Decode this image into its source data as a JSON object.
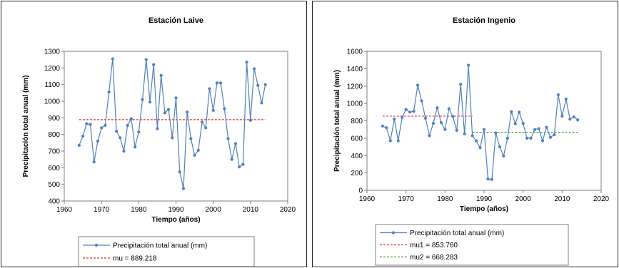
{
  "chart_data": [
    {
      "type": "line",
      "title": "Estación Laive",
      "xlabel": "Tiempo (años)",
      "ylabel": "Precipitación total anual (mm)",
      "xlim": [
        1960,
        2020
      ],
      "ylim": [
        400,
        1300
      ],
      "xticks": [
        1960,
        1970,
        1980,
        1990,
        2000,
        2010,
        2020
      ],
      "yticks": [
        400,
        500,
        600,
        700,
        800,
        900,
        1000,
        1100,
        1200,
        1300
      ],
      "grid": false,
      "legend_position": "below",
      "series": [
        {
          "name": "Precipitación total anual (mm)",
          "color": "#4f81bd",
          "x": [
            1964,
            1965,
            1966,
            1967,
            1968,
            1969,
            1970,
            1971,
            1972,
            1973,
            1974,
            1975,
            1976,
            1977,
            1978,
            1979,
            1980,
            1981,
            1982,
            1983,
            1984,
            1985,
            1986,
            1987,
            1988,
            1989,
            1990,
            1991,
            1992,
            1993,
            1994,
            1995,
            1996,
            1997,
            1998,
            1999,
            2000,
            2001,
            2002,
            2003,
            2004,
            2005,
            2006,
            2007,
            2008,
            2009,
            2010,
            2011,
            2012,
            2013,
            2014
          ],
          "y": [
            735,
            790,
            865,
            860,
            635,
            760,
            840,
            855,
            1055,
            1255,
            820,
            780,
            700,
            855,
            895,
            725,
            815,
            1010,
            1250,
            995,
            1220,
            835,
            1155,
            930,
            950,
            780,
            1020,
            575,
            475,
            935,
            775,
            675,
            705,
            875,
            840,
            1075,
            945,
            1110,
            1110,
            955,
            775,
            650,
            745,
            605,
            620,
            1235,
            885,
            1195,
            1095,
            990,
            1100
          ]
        }
      ],
      "reference_lines": [
        {
          "name": "mu = 889.218",
          "value": 889.218,
          "x_range": [
            1964,
            2014
          ],
          "color": "#e03030"
        }
      ]
    },
    {
      "type": "line",
      "title": "Estación Ingenio",
      "xlabel": "Tiempo (años)",
      "ylabel": "Precipitación total anual (mm)",
      "xlim": [
        1960,
        2020
      ],
      "ylim": [
        0,
        1600
      ],
      "xticks": [
        1960,
        1970,
        1980,
        1990,
        2000,
        2010,
        2020
      ],
      "yticks": [
        0,
        200,
        400,
        600,
        800,
        1000,
        1200,
        1400,
        1600
      ],
      "grid": false,
      "legend_position": "below",
      "series": [
        {
          "name": "Precipitación total anual (mm)",
          "color": "#4f81bd",
          "x": [
            1964,
            1965,
            1966,
            1967,
            1968,
            1969,
            1970,
            1971,
            1972,
            1973,
            1974,
            1975,
            1976,
            1977,
            1978,
            1979,
            1980,
            1981,
            1982,
            1983,
            1984,
            1985,
            1986,
            1987,
            1988,
            1989,
            1990,
            1991,
            1992,
            1993,
            1994,
            1995,
            1996,
            1997,
            1998,
            1999,
            2000,
            2001,
            2002,
            2003,
            2004,
            2005,
            2006,
            2007,
            2008,
            2009,
            2010,
            2011,
            2012,
            2013,
            2014
          ],
          "y": [
            740,
            720,
            570,
            820,
            570,
            840,
            930,
            900,
            910,
            1210,
            1030,
            830,
            630,
            770,
            950,
            780,
            700,
            940,
            850,
            690,
            1220,
            650,
            1440,
            630,
            570,
            490,
            700,
            130,
            125,
            660,
            500,
            395,
            600,
            905,
            765,
            900,
            770,
            600,
            600,
            700,
            710,
            570,
            725,
            610,
            640,
            1100,
            855,
            1050,
            820,
            845,
            810
          ]
        }
      ],
      "reference_lines": [
        {
          "name": "mu1 = 853.760",
          "value": 853.76,
          "x_range": [
            1964,
            1987
          ],
          "color": "#e03030"
        },
        {
          "name": "mu2 = 668.283",
          "value": 668.283,
          "x_range": [
            1987,
            2014
          ],
          "color": "#30a030"
        }
      ]
    }
  ]
}
